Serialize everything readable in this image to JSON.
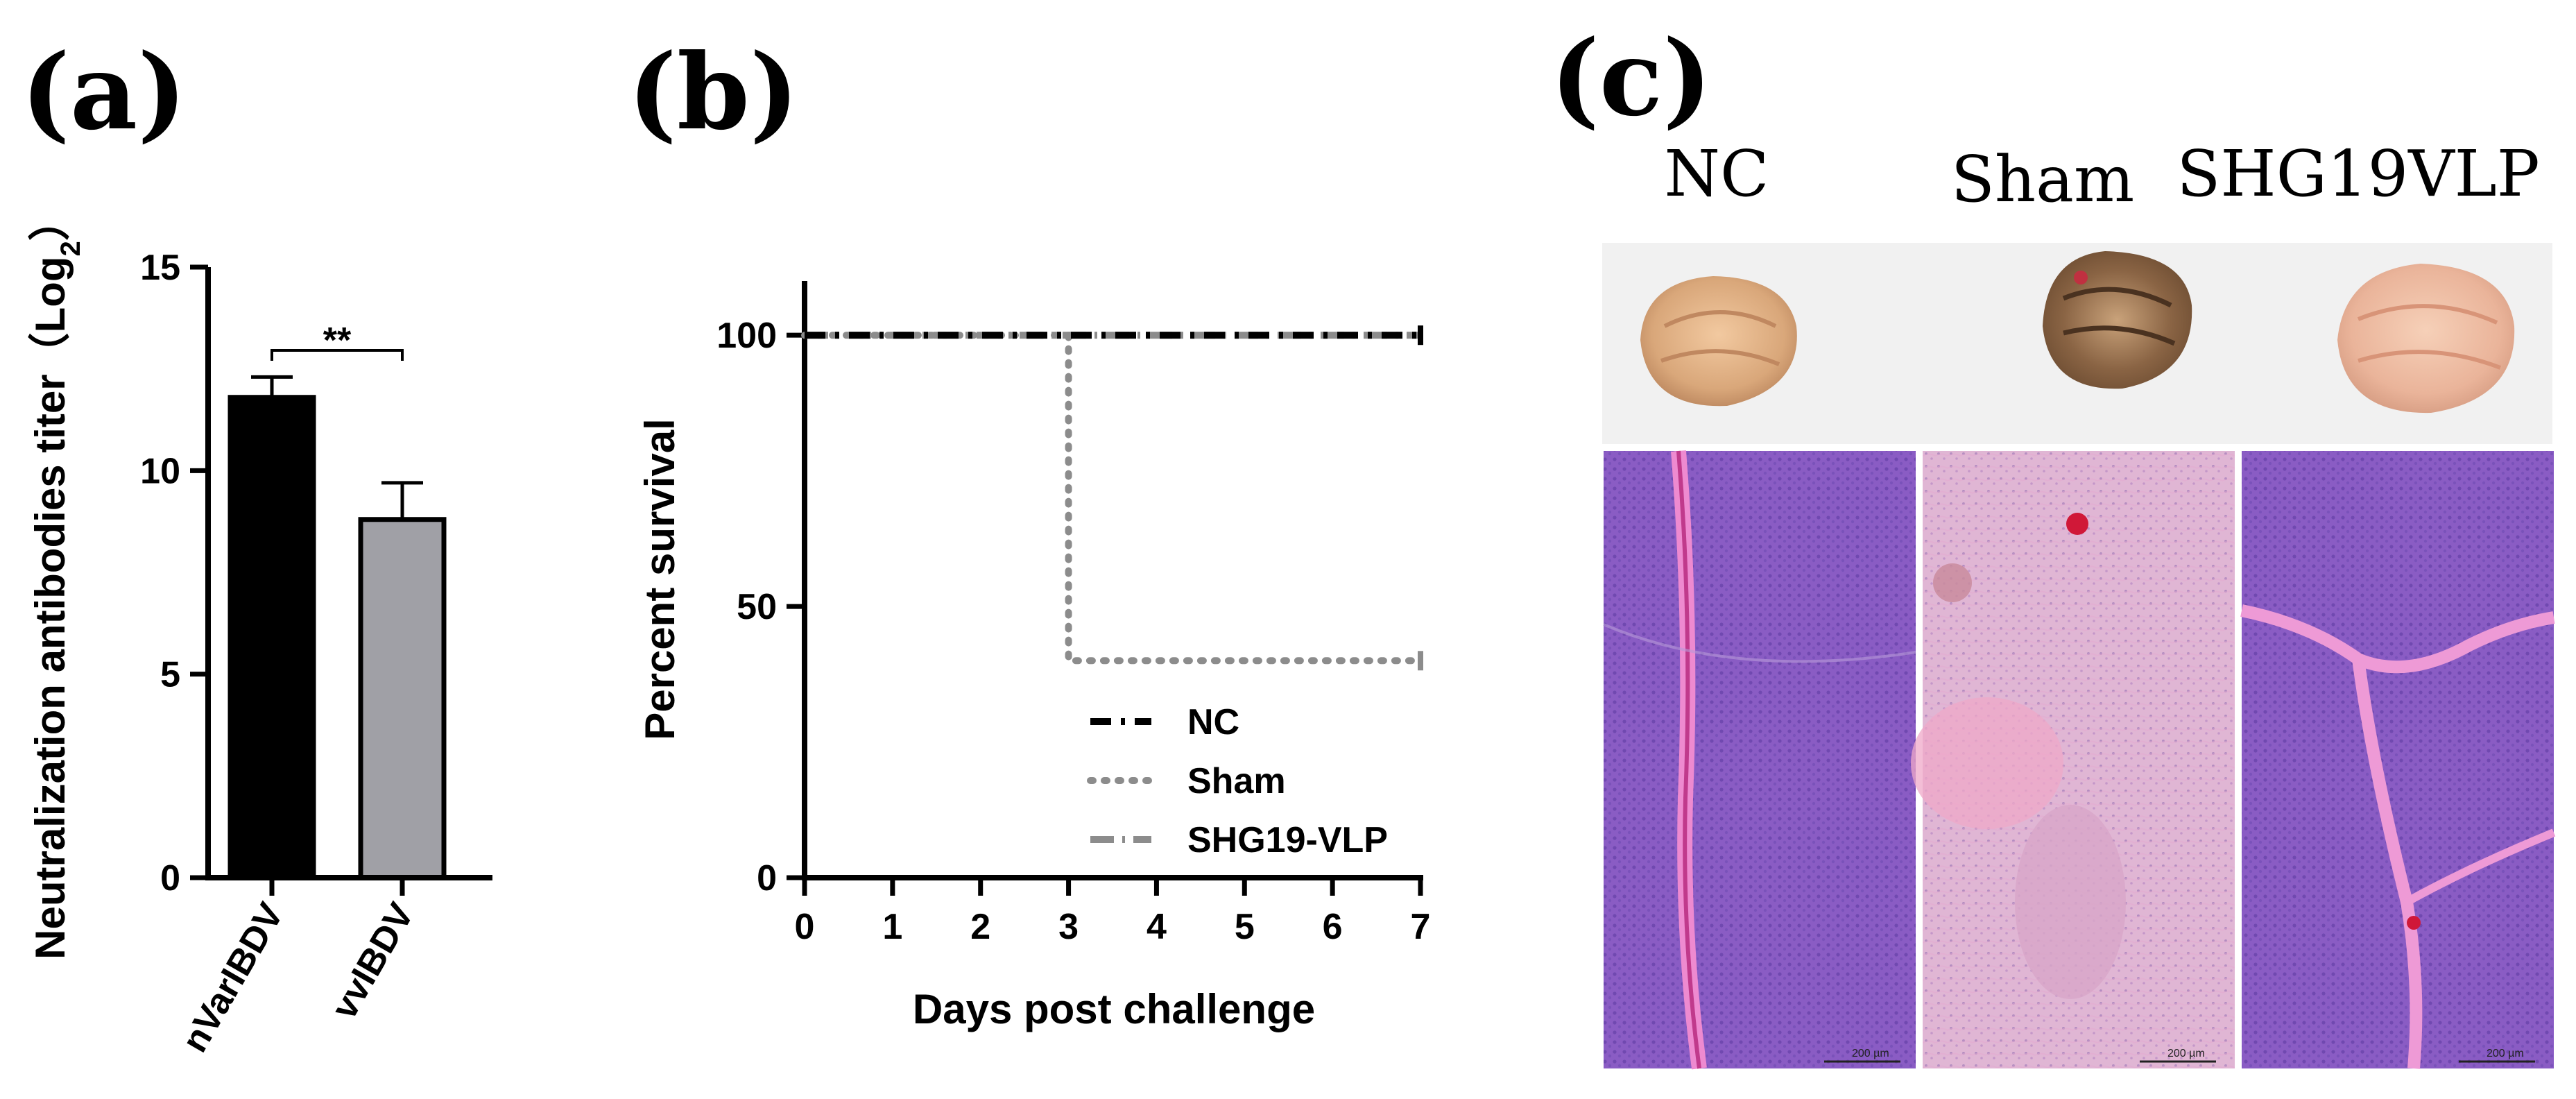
{
  "panels": {
    "a": "(a)",
    "b": "(b)",
    "c": "(c)"
  },
  "colors": {
    "nVarIBDV_bar": "#000000",
    "vvIBDV_bar": "#a0a0a6",
    "nc_line": "#000000",
    "sham_line": "#8c8c8c",
    "shg19_line": "#8c8c8c",
    "gross_background": "#f1f1f1",
    "he_stain": "#8a5cc4"
  },
  "chart_data": [
    {
      "type": "bar",
      "panel": "a",
      "categories": [
        "nVarIBDV",
        "vvIBDV"
      ],
      "values": [
        11.8,
        8.8
      ],
      "errors": [
        0.5,
        0.9
      ],
      "ylabel": "Neutralization antibodies titer（Log",
      "ylabel_sub": "2",
      "ylabel_close": "）",
      "ylim": [
        0,
        15
      ],
      "yticks": [
        0,
        5,
        10,
        15
      ],
      "significance": "**"
    },
    {
      "type": "line",
      "panel": "b",
      "xlabel": "Days post challenge",
      "ylabel": "Percent survival",
      "xlim": [
        0,
        7
      ],
      "ylim": [
        0,
        110
      ],
      "xticks": [
        0,
        1,
        2,
        3,
        4,
        5,
        6,
        7
      ],
      "yticks": [
        0,
        50,
        100
      ],
      "legend_position": "bottom-right",
      "series": [
        {
          "name": "NC",
          "steps": [
            [
              0,
              100
            ],
            [
              7,
              100
            ]
          ]
        },
        {
          "name": "Sham",
          "steps": [
            [
              0,
              100
            ],
            [
              3,
              100
            ],
            [
              3,
              40
            ],
            [
              7,
              40
            ]
          ]
        },
        {
          "name": "SHG19-VLP",
          "steps": [
            [
              0,
              100
            ],
            [
              7,
              100
            ]
          ]
        }
      ]
    }
  ],
  "panel_c": {
    "columns": [
      "NC",
      "Sham",
      "SHG19VLP"
    ],
    "scale_bar": "200 µm"
  }
}
